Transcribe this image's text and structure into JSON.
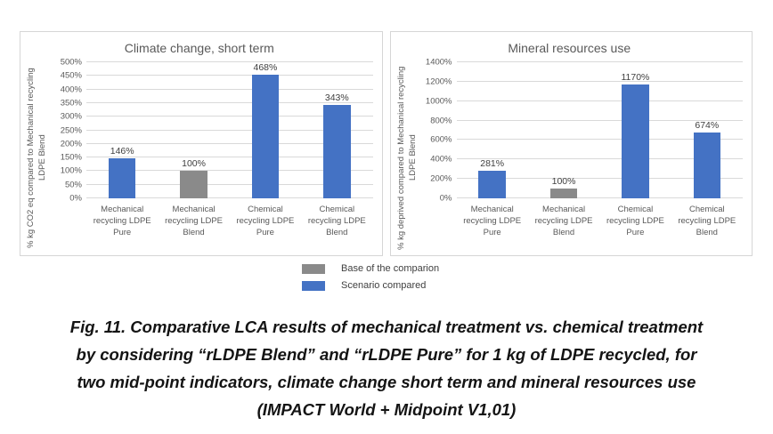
{
  "colors": {
    "bar_blue": "#4472c4",
    "bar_gray": "#8a8a8a",
    "gridline": "#d9d9d9",
    "axis_text": "#595959",
    "data_label": "#404040"
  },
  "chart_data": [
    {
      "type": "bar",
      "title": "Climate change, short term",
      "ylabel": "% kg CO2 eq compared to Mechanical recycling LDPE Blend",
      "categories": [
        "Mechanical recycling LDPE Pure",
        "Mechanical recycling LDPE Blend",
        "Chemical recycling LDPE Pure",
        "Chemical recycling LDPE Blend"
      ],
      "values": [
        146,
        100,
        468,
        343
      ],
      "value_labels": [
        "146%",
        "100%",
        "468%",
        "343%"
      ],
      "bar_colors": [
        "#4472c4",
        "#8a8a8a",
        "#4472c4",
        "#4472c4"
      ],
      "ylim": [
        0,
        500
      ],
      "ytick_labels": [
        "0%",
        "50%",
        "100%",
        "150%",
        "200%",
        "250%",
        "300%",
        "350%",
        "400%",
        "450%",
        "500%"
      ],
      "grid": true,
      "legend_position": "none"
    },
    {
      "type": "bar",
      "title": "Mineral resources use",
      "ylabel": "% kg deprived compared to Mechanical recycling LDPE Blend",
      "categories": [
        "Mechanical recycling LDPE Pure",
        "Mechanical recycling LDPE Blend",
        "Chemical recycling LDPE Pure",
        "Chemical recycling LDPE Blend"
      ],
      "values": [
        281,
        100,
        1170,
        674
      ],
      "value_labels": [
        "281%",
        "100%",
        "1170%",
        "674%"
      ],
      "bar_colors": [
        "#4472c4",
        "#8a8a8a",
        "#4472c4",
        "#4472c4"
      ],
      "ylim": [
        0,
        1400
      ],
      "ytick_labels": [
        "0%",
        "200%",
        "400%",
        "600%",
        "800%",
        "1000%",
        "1200%",
        "1400%"
      ],
      "grid": true,
      "legend_position": "none"
    }
  ],
  "legend": {
    "items": [
      {
        "label": "Base of the comparion",
        "color": "#8a8a8a"
      },
      {
        "label": "Scenario compared",
        "color": "#4472c4"
      }
    ]
  },
  "figure": {
    "caption_lines": [
      "Fig. 11. Comparative LCA results of mechanical treatment vs. chemical treatment",
      "by considering “rLDPE Blend” and “rLDPE Pure” for 1 kg of LDPE recycled, for",
      "two mid-point indicators, climate change short term and mineral resources use",
      "(IMPACT World + Midpoint V1,01)"
    ]
  }
}
